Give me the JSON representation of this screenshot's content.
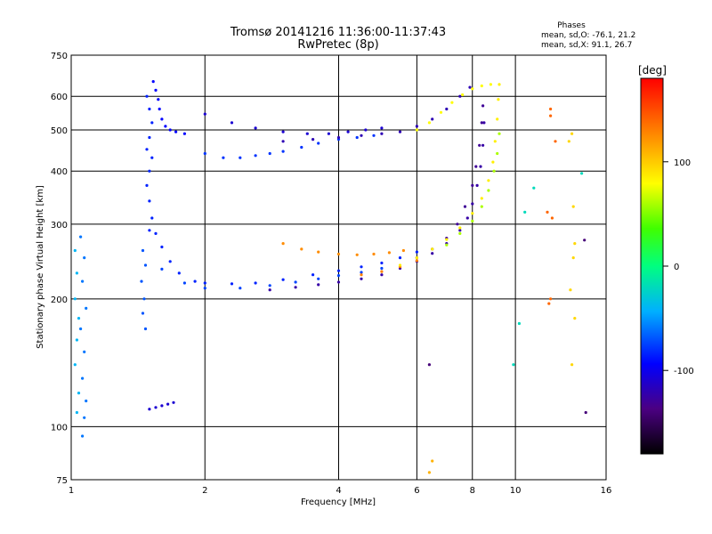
{
  "header": {
    "title": "Tromsø 20141216 11:36:00-11:37:43",
    "subtitle": "RwPretec (8p)"
  },
  "phase_box": {
    "heading": "Phases",
    "line_o": "mean, sd,O: -76.1, 21.2",
    "line_x": "mean, sd,X:  91.1, 26.7"
  },
  "chart_data": {
    "type": "scatter",
    "xlabel": "Frequency [MHz]",
    "ylabel": "Stationary phase Virtual Height [km]",
    "x_scale": "log",
    "y_scale": "log",
    "xlim": [
      1,
      16
    ],
    "ylim": [
      75,
      750
    ],
    "x_ticks": [
      1,
      2,
      4,
      6,
      8,
      10,
      16
    ],
    "y_ticks": [
      75,
      100,
      200,
      300,
      400,
      500,
      600,
      750
    ],
    "grid": true,
    "colorbar": {
      "unit": "[deg]",
      "range": [
        -180,
        180
      ],
      "ticks": [
        100,
        0,
        -100
      ],
      "colormap": "rainbow"
    },
    "series": [
      {
        "color_value": -95,
        "points": [
          [
            1.53,
            650
          ],
          [
            1.55,
            620
          ],
          [
            1.57,
            590
          ],
          [
            1.58,
            560
          ],
          [
            1.6,
            530
          ],
          [
            1.63,
            510
          ],
          [
            1.67,
            500
          ],
          [
            1.72,
            495
          ],
          [
            1.8,
            490
          ]
        ]
      },
      {
        "color_value": -85,
        "points": [
          [
            1.48,
            600
          ],
          [
            1.5,
            560
          ],
          [
            1.52,
            520
          ],
          [
            1.5,
            480
          ],
          [
            1.48,
            450
          ],
          [
            1.52,
            430
          ],
          [
            1.5,
            400
          ],
          [
            1.48,
            370
          ],
          [
            1.5,
            340
          ],
          [
            1.52,
            310
          ],
          [
            1.5,
            290
          ]
        ]
      },
      {
        "color_value": -80,
        "points": [
          [
            2.0,
            440
          ],
          [
            2.2,
            430
          ],
          [
            2.4,
            430
          ],
          [
            2.6,
            435
          ],
          [
            2.8,
            440
          ],
          [
            3.0,
            445
          ],
          [
            3.3,
            455
          ],
          [
            3.6,
            465
          ],
          [
            4.0,
            475
          ],
          [
            4.4,
            480
          ],
          [
            4.8,
            485
          ]
        ]
      },
      {
        "color_value": -110,
        "points": [
          [
            2.0,
            545
          ],
          [
            2.3,
            520
          ],
          [
            2.6,
            505
          ],
          [
            3.0,
            495
          ],
          [
            3.4,
            490
          ],
          [
            3.8,
            490
          ],
          [
            4.2,
            495
          ],
          [
            4.6,
            500
          ],
          [
            5.0,
            505
          ]
        ]
      },
      {
        "color_value": -120,
        "points": [
          [
            3.0,
            470
          ],
          [
            3.5,
            475
          ],
          [
            4.0,
            480
          ],
          [
            4.5,
            485
          ],
          [
            5.0,
            490
          ],
          [
            5.5,
            495
          ],
          [
            6.0,
            510
          ],
          [
            6.5,
            530
          ],
          [
            7.0,
            560
          ],
          [
            7.5,
            600
          ],
          [
            7.9,
            630
          ]
        ]
      },
      {
        "color_value": 80,
        "points": [
          [
            6.0,
            500
          ],
          [
            6.4,
            520
          ],
          [
            6.8,
            550
          ],
          [
            7.2,
            580
          ],
          [
            7.6,
            605
          ],
          [
            8.0,
            625
          ],
          [
            8.4,
            635
          ],
          [
            8.8,
            640
          ]
        ]
      },
      {
        "color_value": -85,
        "points": [
          [
            1.55,
            285
          ],
          [
            1.6,
            265
          ],
          [
            1.67,
            245
          ],
          [
            1.75,
            230
          ],
          [
            1.9,
            220
          ],
          [
            2.0,
            218
          ],
          [
            2.3,
            217
          ],
          [
            2.6,
            218
          ],
          [
            3.0,
            222
          ],
          [
            3.5,
            228
          ],
          [
            4.0,
            233
          ],
          [
            4.5,
            238
          ],
          [
            5.0,
            243
          ],
          [
            5.5,
            250
          ],
          [
            6.0,
            258
          ]
        ]
      },
      {
        "color_value": -75,
        "points": [
          [
            1.6,
            235
          ],
          [
            1.8,
            218
          ],
          [
            2.0,
            212
          ],
          [
            2.4,
            212
          ],
          [
            2.8,
            215
          ],
          [
            3.2,
            219
          ],
          [
            3.6,
            223
          ],
          [
            4.0,
            227
          ],
          [
            4.5,
            231
          ],
          [
            5.0,
            236
          ]
        ]
      },
      {
        "color_value": -125,
        "points": [
          [
            2.8,
            210
          ],
          [
            3.2,
            213
          ],
          [
            3.6,
            216
          ],
          [
            4.0,
            219
          ],
          [
            4.5,
            223
          ],
          [
            5.0,
            228
          ],
          [
            5.5,
            236
          ],
          [
            6.0,
            245
          ],
          [
            6.5,
            256
          ],
          [
            7.0,
            270
          ],
          [
            7.5,
            290
          ],
          [
            7.8,
            310
          ],
          [
            8.0,
            335
          ],
          [
            8.2,
            370
          ],
          [
            8.35,
            410
          ],
          [
            8.45,
            460
          ],
          [
            8.5,
            520
          ]
        ]
      },
      {
        "color_value": -130,
        "points": [
          [
            6.0,
            250
          ],
          [
            6.5,
            262
          ],
          [
            7.0,
            278
          ],
          [
            7.4,
            300
          ],
          [
            7.7,
            330
          ],
          [
            8.0,
            370
          ],
          [
            8.15,
            410
          ],
          [
            8.3,
            460
          ],
          [
            8.4,
            520
          ],
          [
            8.45,
            570
          ]
        ]
      },
      {
        "color_value": 125,
        "points": [
          [
            3.0,
            270
          ],
          [
            3.3,
            262
          ],
          [
            3.6,
            258
          ],
          [
            4.0,
            255
          ],
          [
            4.4,
            254
          ],
          [
            4.8,
            255
          ],
          [
            5.2,
            257
          ],
          [
            5.6,
            260
          ]
        ]
      },
      {
        "color_value": 130,
        "points": [
          [
            4.5,
            228
          ],
          [
            5.0,
            232
          ],
          [
            5.5,
            238
          ],
          [
            6.0,
            246
          ]
        ]
      },
      {
        "color_value": 85,
        "points": [
          [
            5.5,
            240
          ],
          [
            6.0,
            250
          ],
          [
            6.5,
            262
          ],
          [
            7.0,
            276
          ],
          [
            7.5,
            294
          ],
          [
            8.0,
            318
          ],
          [
            8.4,
            345
          ],
          [
            8.7,
            380
          ],
          [
            8.9,
            420
          ],
          [
            9.0,
            470
          ],
          [
            9.1,
            530
          ],
          [
            9.15,
            590
          ],
          [
            9.2,
            640
          ]
        ]
      },
      {
        "color_value": 60,
        "points": [
          [
            7.0,
            268
          ],
          [
            7.5,
            285
          ],
          [
            8.0,
            305
          ],
          [
            8.4,
            330
          ],
          [
            8.7,
            360
          ],
          [
            8.95,
            400
          ],
          [
            9.1,
            440
          ],
          [
            9.2,
            490
          ]
        ]
      },
      {
        "color_value": -60,
        "points": [
          [
            1.05,
            280
          ],
          [
            1.07,
            250
          ],
          [
            1.06,
            220
          ],
          [
            1.08,
            190
          ],
          [
            1.05,
            170
          ],
          [
            1.07,
            150
          ],
          [
            1.06,
            130
          ],
          [
            1.08,
            115
          ],
          [
            1.07,
            105
          ],
          [
            1.06,
            95
          ]
        ]
      },
      {
        "color_value": -40,
        "points": [
          [
            1.02,
            260
          ],
          [
            1.03,
            230
          ],
          [
            1.02,
            200
          ],
          [
            1.04,
            180
          ],
          [
            1.03,
            160
          ],
          [
            1.02,
            140
          ],
          [
            1.04,
            120
          ],
          [
            1.03,
            108
          ]
        ]
      },
      {
        "color_value": -70,
        "points": [
          [
            1.45,
            260
          ],
          [
            1.47,
            240
          ],
          [
            1.44,
            220
          ],
          [
            1.46,
            200
          ],
          [
            1.45,
            185
          ],
          [
            1.47,
            170
          ]
        ]
      },
      {
        "color_value": -110,
        "points": [
          [
            1.5,
            110
          ],
          [
            1.55,
            111
          ],
          [
            1.6,
            112
          ],
          [
            1.65,
            113
          ],
          [
            1.7,
            114
          ]
        ]
      },
      {
        "color_value": 140,
        "points": [
          [
            12.0,
            560
          ],
          [
            12.0,
            540
          ],
          [
            12.3,
            470
          ],
          [
            11.8,
            320
          ],
          [
            12.1,
            310
          ],
          [
            12.0,
            200
          ],
          [
            11.9,
            195
          ]
        ]
      },
      {
        "color_value": 95,
        "points": [
          [
            13.4,
            490
          ],
          [
            13.2,
            470
          ],
          [
            13.5,
            330
          ],
          [
            13.6,
            270
          ],
          [
            13.5,
            250
          ],
          [
            13.3,
            210
          ],
          [
            13.6,
            180
          ],
          [
            13.4,
            140
          ]
        ]
      },
      {
        "color_value": 110,
        "points": [
          [
            6.5,
            83
          ],
          [
            6.4,
            78
          ]
        ]
      },
      {
        "color_value": -140,
        "points": [
          [
            6.4,
            140
          ],
          [
            14.3,
            275
          ],
          [
            14.4,
            108
          ]
        ]
      },
      {
        "color_value": -20,
        "points": [
          [
            9.9,
            140
          ],
          [
            10.5,
            320
          ],
          [
            10.2,
            175
          ],
          [
            14.1,
            395
          ],
          [
            11.0,
            365
          ]
        ]
      }
    ]
  }
}
